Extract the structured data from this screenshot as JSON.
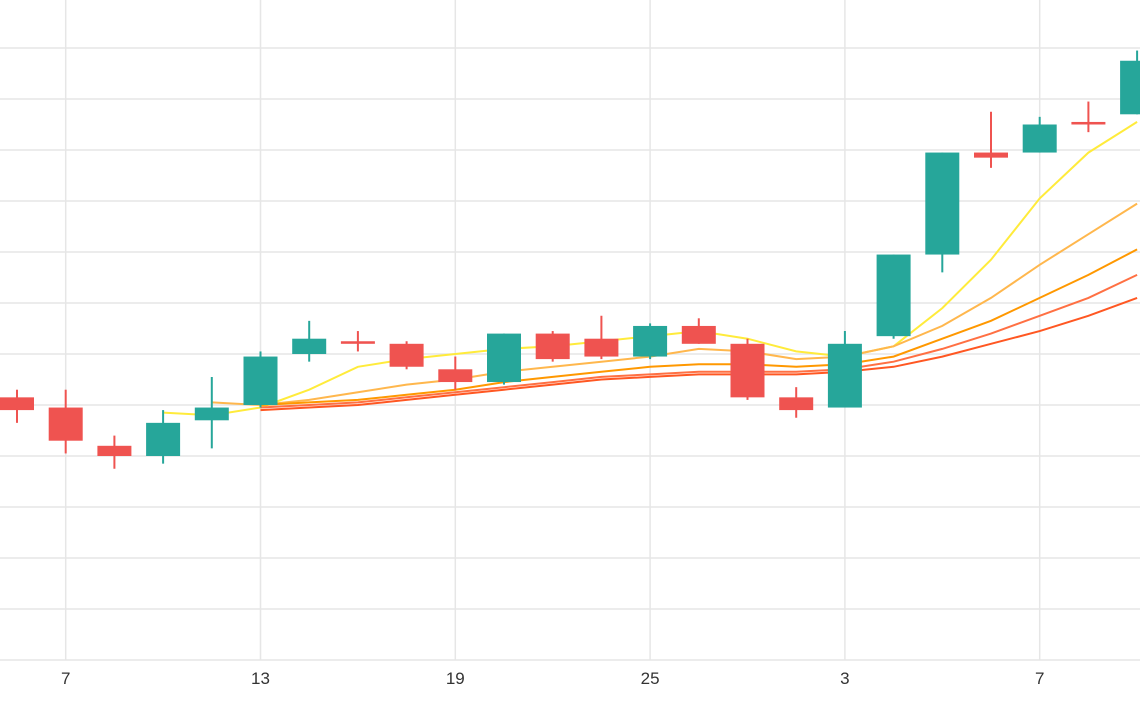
{
  "chart_data": {
    "type": "candlestick",
    "x_tick_labels": [
      "7",
      "13",
      "19",
      "25",
      "3",
      "7"
    ],
    "grid": true,
    "legend": "none",
    "ylim": [
      0,
      13
    ],
    "y_gridlines": [
      1,
      2,
      3,
      4,
      5,
      6,
      7,
      8,
      9,
      10,
      11,
      12
    ],
    "colors": {
      "up": "#26a69a",
      "down": "#ef5350",
      "ma_lines": [
        "#ffeb3b",
        "#ffb74d",
        "#ff9800",
        "#ff7043",
        "#ff5722"
      ],
      "grid": "#e6e6e6"
    },
    "candles": [
      {
        "x": 0,
        "open": 5.15,
        "high": 5.3,
        "low": 4.65,
        "close": 4.9
      },
      {
        "x": 1,
        "open": 4.95,
        "high": 5.3,
        "low": 4.05,
        "close": 4.3
      },
      {
        "x": 2,
        "open": 4.2,
        "high": 4.4,
        "low": 3.75,
        "close": 4.0
      },
      {
        "x": 3,
        "open": 4.0,
        "high": 4.9,
        "low": 3.85,
        "close": 4.65
      },
      {
        "x": 4,
        "open": 4.7,
        "high": 5.55,
        "low": 4.15,
        "close": 4.95
      },
      {
        "x": 5,
        "open": 5.0,
        "high": 6.05,
        "low": 4.95,
        "close": 5.95
      },
      {
        "x": 6,
        "open": 6.0,
        "high": 6.65,
        "low": 5.85,
        "close": 6.3
      },
      {
        "x": 7,
        "open": 6.25,
        "high": 6.45,
        "low": 6.05,
        "close": 6.2
      },
      {
        "x": 8,
        "open": 6.2,
        "high": 6.25,
        "low": 5.7,
        "close": 5.75
      },
      {
        "x": 9,
        "open": 5.7,
        "high": 5.95,
        "low": 5.3,
        "close": 5.45
      },
      {
        "x": 10,
        "open": 5.45,
        "high": 6.4,
        "low": 5.4,
        "close": 6.4
      },
      {
        "x": 11,
        "open": 6.4,
        "high": 6.45,
        "low": 5.85,
        "close": 5.9
      },
      {
        "x": 12,
        "open": 6.3,
        "high": 6.75,
        "low": 5.9,
        "close": 5.95
      },
      {
        "x": 13,
        "open": 5.95,
        "high": 6.6,
        "low": 5.9,
        "close": 6.55
      },
      {
        "x": 14,
        "open": 6.55,
        "high": 6.7,
        "low": 6.2,
        "close": 6.2
      },
      {
        "x": 15,
        "open": 6.2,
        "high": 6.3,
        "low": 5.1,
        "close": 5.15
      },
      {
        "x": 16,
        "open": 5.15,
        "high": 5.35,
        "low": 4.75,
        "close": 4.9
      },
      {
        "x": 17,
        "open": 4.95,
        "high": 6.45,
        "low": 4.95,
        "close": 6.2
      },
      {
        "x": 18,
        "open": 6.35,
        "high": 7.95,
        "low": 6.3,
        "close": 7.95
      },
      {
        "x": 19,
        "open": 7.95,
        "high": 9.95,
        "low": 7.6,
        "close": 9.95
      },
      {
        "x": 20,
        "open": 9.95,
        "high": 10.75,
        "low": 9.65,
        "close": 9.85
      },
      {
        "x": 21,
        "open": 9.95,
        "high": 10.65,
        "low": 9.95,
        "close": 10.5
      },
      {
        "x": 22,
        "open": 10.55,
        "high": 10.95,
        "low": 10.35,
        "close": 10.5
      },
      {
        "x": 23,
        "open": 10.7,
        "high": 11.95,
        "low": 10.7,
        "close": 11.75
      }
    ],
    "ma_series": [
      {
        "values": [
          null,
          null,
          null,
          4.85,
          4.8,
          4.95,
          5.3,
          5.75,
          5.9,
          6.0,
          6.1,
          6.15,
          6.25,
          6.35,
          6.45,
          6.3,
          6.05,
          5.95,
          6.15,
          6.9,
          7.85,
          9.05,
          9.95,
          10.55
        ]
      },
      {
        "values": [
          null,
          null,
          null,
          null,
          5.05,
          5.0,
          5.1,
          5.25,
          5.4,
          5.5,
          5.65,
          5.75,
          5.85,
          5.95,
          6.1,
          6.05,
          5.9,
          5.95,
          6.15,
          6.55,
          7.1,
          7.75,
          8.35,
          8.95
        ]
      },
      {
        "values": [
          null,
          null,
          null,
          null,
          null,
          5.0,
          5.05,
          5.1,
          5.2,
          5.3,
          5.45,
          5.55,
          5.65,
          5.75,
          5.8,
          5.8,
          5.75,
          5.8,
          5.95,
          6.3,
          6.65,
          7.1,
          7.55,
          8.05
        ]
      },
      {
        "values": [
          null,
          null,
          null,
          null,
          null,
          4.95,
          5.0,
          5.05,
          5.15,
          5.25,
          5.35,
          5.45,
          5.55,
          5.6,
          5.65,
          5.65,
          5.65,
          5.7,
          5.85,
          6.1,
          6.4,
          6.75,
          7.1,
          7.55
        ]
      },
      {
        "values": [
          null,
          null,
          null,
          null,
          null,
          4.9,
          4.95,
          5.0,
          5.1,
          5.2,
          5.3,
          5.4,
          5.5,
          5.55,
          5.6,
          5.6,
          5.6,
          5.65,
          5.75,
          5.95,
          6.2,
          6.45,
          6.75,
          7.1
        ]
      }
    ]
  }
}
